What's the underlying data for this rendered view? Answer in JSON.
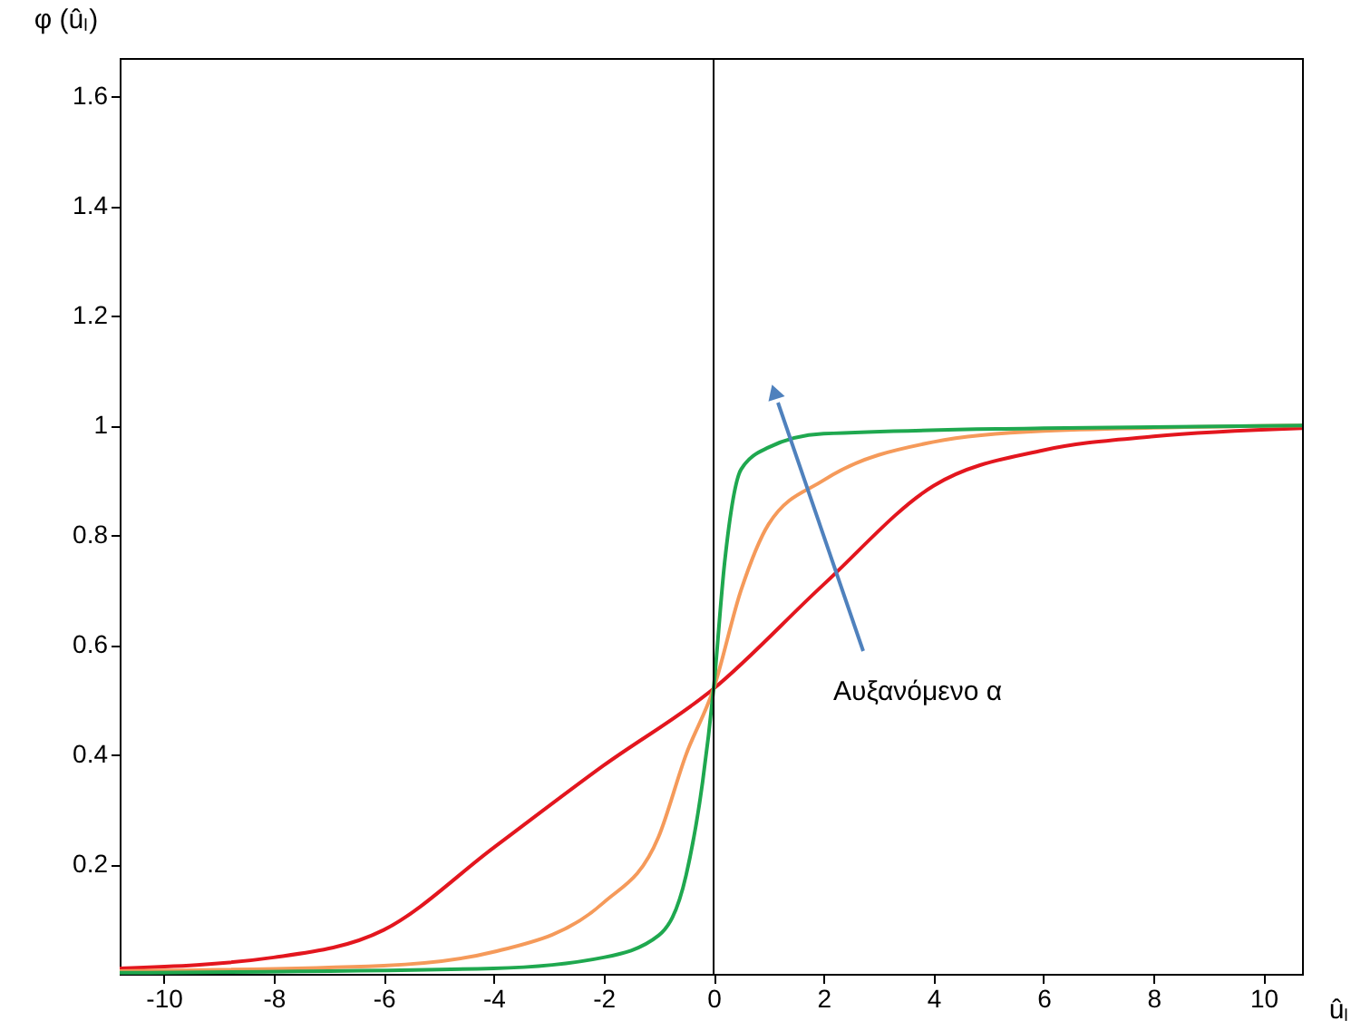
{
  "chart_data": {
    "type": "line",
    "xlabel": "ûₗ",
    "ylabel": "φ (ûₗ)",
    "xlim": [
      -10.8,
      10.7
    ],
    "ylim": [
      0,
      1.67
    ],
    "xticks": [
      -10,
      -8,
      -6,
      -4,
      -2,
      0,
      2,
      4,
      6,
      8,
      10
    ],
    "yticks": [
      0.2,
      0.4,
      0.6,
      0.8,
      1,
      1.2,
      1.4,
      1.6
    ],
    "grid": false,
    "marker": "none",
    "line_style": "solid",
    "ref_lines": [
      {
        "axis": "x",
        "value": 0,
        "color": "#000000"
      }
    ],
    "annotations": [
      "Αυξανόμενο α"
    ],
    "series": [
      {
        "color": "#e3161e",
        "x": [
          -10.8,
          -8,
          -6,
          -4,
          -2,
          0,
          2,
          4,
          6,
          8,
          10.7
        ],
        "values": [
          0.01,
          0.03,
          0.08,
          0.23,
          0.38,
          0.52,
          0.71,
          0.89,
          0.955,
          0.98,
          0.995
        ]
      },
      {
        "color": "#f59a5a",
        "x": [
          -10.8,
          -6,
          -4,
          -2,
          -1,
          -0.5,
          0,
          0.5,
          1,
          2,
          4,
          6,
          10.7
        ],
        "values": [
          0.005,
          0.015,
          0.04,
          0.13,
          0.25,
          0.4,
          0.52,
          0.7,
          0.82,
          0.9,
          0.97,
          0.99,
          1.0
        ]
      },
      {
        "color": "#1fa84f",
        "x": [
          -10.8,
          -4,
          -2,
          -1,
          -0.5,
          -0.2,
          0,
          0.2,
          0.5,
          1,
          2,
          6,
          10.7
        ],
        "values": [
          0.002,
          0.01,
          0.03,
          0.07,
          0.18,
          0.35,
          0.52,
          0.75,
          0.92,
          0.96,
          0.985,
          0.995,
          1.0
        ]
      }
    ]
  }
}
